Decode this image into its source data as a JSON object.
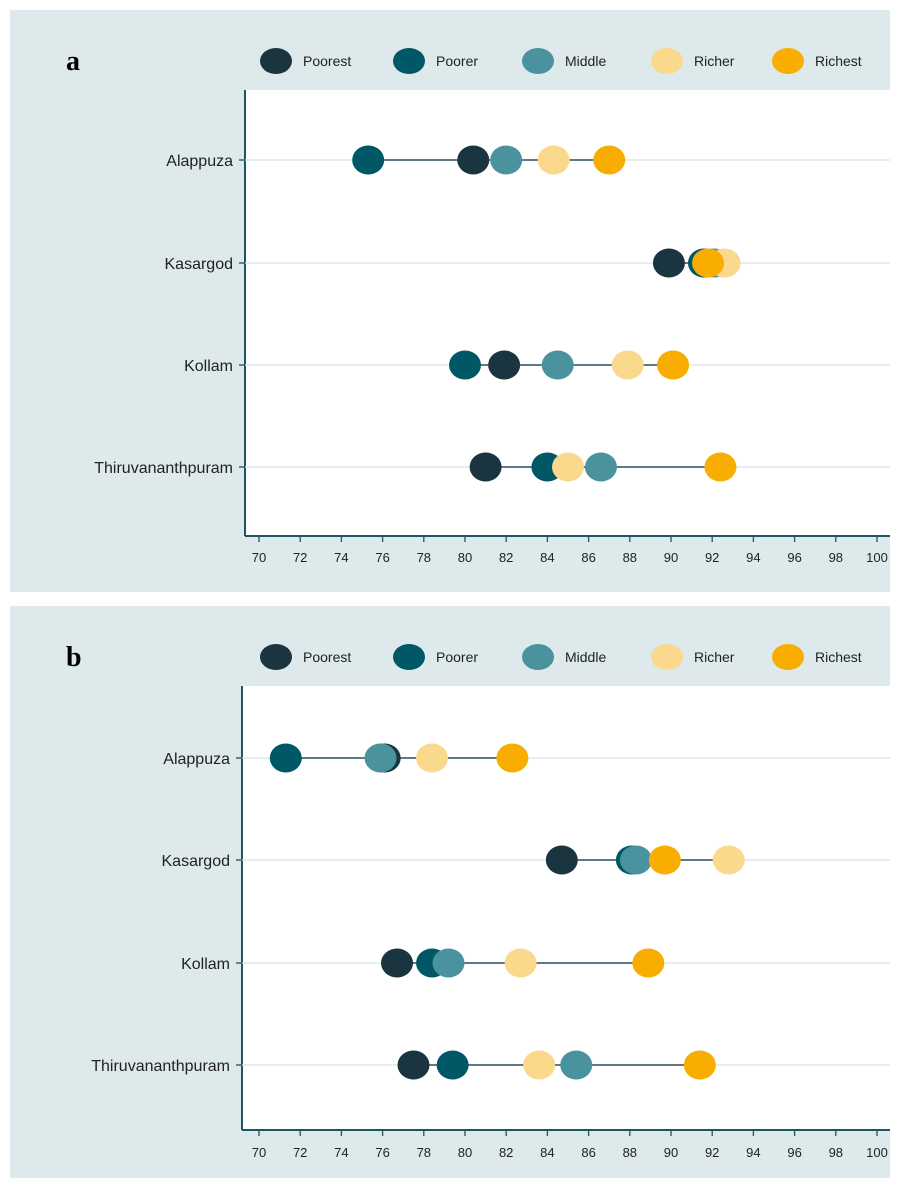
{
  "legend": [
    {
      "key": "poorest",
      "label": "Poorest",
      "color": "#1a3540"
    },
    {
      "key": "poorer",
      "label": "Poorer",
      "color": "#005866"
    },
    {
      "key": "middle",
      "label": "Middle",
      "color": "#4a939e"
    },
    {
      "key": "richer",
      "label": "Richer",
      "color": "#fbd98c"
    },
    {
      "key": "richest",
      "label": "Richest",
      "color": "#f9ad00"
    }
  ],
  "chart_data": [
    {
      "panel": "a",
      "type": "scatter",
      "orientation": "horizontal-dot-range",
      "categories": [
        "Alappuza",
        "Kasargod",
        "Kollam",
        "Thiruvananthpuram"
      ],
      "xlim": [
        70,
        100
      ],
      "xticks": [
        70,
        72,
        74,
        76,
        78,
        80,
        82,
        84,
        86,
        88,
        90,
        92,
        94,
        96,
        98,
        100
      ],
      "grid": true,
      "legend_position": "top",
      "series": [
        {
          "name": "Poorest",
          "values": [
            80.4,
            89.9,
            81.9,
            81.0
          ]
        },
        {
          "name": "Poorer",
          "values": [
            75.3,
            91.6,
            80.0,
            84.0
          ]
        },
        {
          "name": "Middle",
          "values": [
            82.0,
            92.1,
            84.5,
            86.6
          ]
        },
        {
          "name": "Richer",
          "values": [
            84.3,
            92.6,
            87.9,
            85.0
          ]
        },
        {
          "name": "Richest",
          "values": [
            87.0,
            91.8,
            90.1,
            92.4
          ]
        }
      ]
    },
    {
      "panel": "b",
      "type": "scatter",
      "orientation": "horizontal-dot-range",
      "categories": [
        "Alappuza",
        "Kasargod",
        "Kollam",
        "Thiruvananthpuram"
      ],
      "xlim": [
        70,
        100
      ],
      "xticks": [
        70,
        72,
        74,
        76,
        78,
        80,
        82,
        84,
        86,
        88,
        90,
        92,
        94,
        96,
        98,
        100
      ],
      "grid": true,
      "legend_position": "top",
      "series": [
        {
          "name": "Poorest",
          "values": [
            76.1,
            84.7,
            76.7,
            77.5
          ]
        },
        {
          "name": "Poorer",
          "values": [
            71.3,
            88.1,
            78.4,
            79.4
          ]
        },
        {
          "name": "Middle",
          "values": [
            75.9,
            88.3,
            79.2,
            85.4
          ]
        },
        {
          "name": "Richer",
          "values": [
            78.4,
            92.8,
            82.7,
            83.6
          ]
        },
        {
          "name": "Richest",
          "values": [
            82.3,
            89.7,
            88.9,
            91.4
          ]
        }
      ]
    }
  ]
}
